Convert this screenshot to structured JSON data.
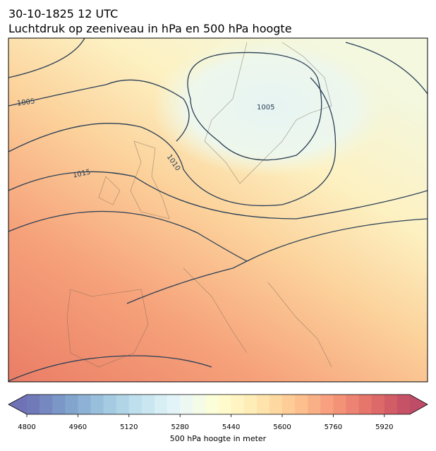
{
  "header": {
    "line1": "30-10-1825 12 UTC",
    "line2": "Luchtdruk op zeeniveau in hPa en 500 hPa hoogte"
  },
  "map": {
    "contour_labels": [
      1005,
      1010,
      1015,
      1005
    ]
  },
  "colorbar": {
    "lim": [
      4800,
      6000
    ],
    "step": 40,
    "ticks": [
      4800,
      4960,
      5120,
      5280,
      5440,
      5600,
      5760,
      5920
    ],
    "label": "500 hPa hoogte in meter",
    "colormap": "RdYlBu_r",
    "extend": "both"
  }
}
